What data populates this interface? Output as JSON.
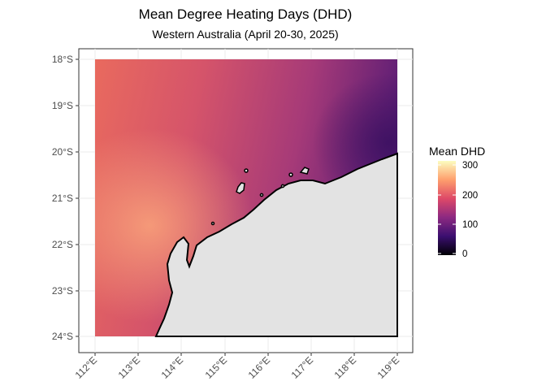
{
  "title": "Mean Degree Heating Days (DHD)",
  "subtitle": "Western Australia (April 20-30, 2025)",
  "map": {
    "region": "Western Australia coast",
    "lat_range": [
      -24,
      -18
    ],
    "lon_range": [
      112,
      119
    ],
    "land_color": "#e3e3e3",
    "coastline_color": "#000000",
    "grid": true
  },
  "y_ticks": [
    {
      "value": -18,
      "label": "18°S"
    },
    {
      "value": -19,
      "label": "19°S"
    },
    {
      "value": -20,
      "label": "20°S"
    },
    {
      "value": -21,
      "label": "21°S"
    },
    {
      "value": -22,
      "label": "22°S"
    },
    {
      "value": -23,
      "label": "23°S"
    },
    {
      "value": -24,
      "label": "24°S"
    }
  ],
  "x_ticks": [
    {
      "value": 112,
      "label": "112°E"
    },
    {
      "value": 113,
      "label": "113°E"
    },
    {
      "value": 114,
      "label": "114°E"
    },
    {
      "value": 115,
      "label": "115°E"
    },
    {
      "value": 116,
      "label": "116°E"
    },
    {
      "value": 117,
      "label": "117°E"
    },
    {
      "value": 118,
      "label": "118°E"
    },
    {
      "value": 119,
      "label": "119°E"
    }
  ],
  "legend": {
    "title": "Mean DHD",
    "min": 0,
    "max": 320,
    "ticks": [
      {
        "value": 0,
        "label": "0"
      },
      {
        "value": 100,
        "label": "100"
      },
      {
        "value": 200,
        "label": "200"
      },
      {
        "value": 300,
        "label": "300"
      }
    ],
    "colors": [
      "#000004",
      "#3b0f70",
      "#8c2981",
      "#de4968",
      "#fe9f6d",
      "#fcfdbf"
    ]
  }
}
